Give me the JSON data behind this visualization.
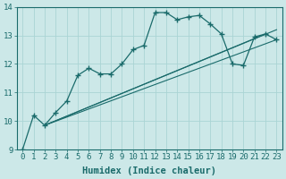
{
  "xlabel": "Humidex (Indice chaleur)",
  "ylabel": "",
  "bg_color": "#cce8e8",
  "line_color": "#1a6b6b",
  "grid_color": "#aad4d4",
  "xlim": [
    -0.5,
    23.5
  ],
  "ylim": [
    9,
    14
  ],
  "yticks": [
    9,
    10,
    11,
    12,
    13,
    14
  ],
  "xticks": [
    0,
    1,
    2,
    3,
    4,
    5,
    6,
    7,
    8,
    9,
    10,
    11,
    12,
    13,
    14,
    15,
    16,
    17,
    18,
    19,
    20,
    21,
    22,
    23
  ],
  "main_x": [
    0,
    1,
    2,
    3,
    4,
    5,
    6,
    7,
    8,
    9,
    10,
    11,
    12,
    13,
    14,
    15,
    16,
    17,
    18,
    19,
    20,
    21,
    22,
    23
  ],
  "main_y": [
    9.0,
    10.2,
    9.85,
    10.3,
    10.7,
    11.6,
    11.85,
    11.65,
    11.65,
    12.0,
    12.5,
    12.65,
    13.8,
    13.8,
    13.55,
    13.65,
    13.7,
    13.4,
    13.05,
    12.0,
    11.95,
    12.95,
    13.05,
    12.85
  ],
  "trend1_x": [
    2,
    23
  ],
  "trend1_y": [
    9.85,
    12.85
  ],
  "trend2_x": [
    2,
    23
  ],
  "trend2_y": [
    9.85,
    13.2
  ],
  "trend3_x": [
    2,
    22
  ],
  "trend3_y": [
    9.85,
    13.05
  ],
  "font_family": "monospace",
  "tick_fontsize": 6.5,
  "label_fontsize": 7.5
}
